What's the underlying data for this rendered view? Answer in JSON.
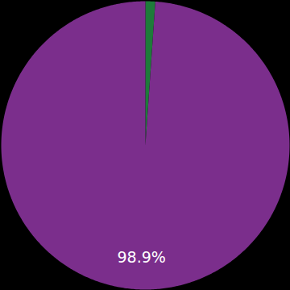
{
  "chart_data": {
    "type": "pie",
    "values": [
      1.1,
      98.9
    ],
    "colors": [
      "#1e7b3a",
      "#7b2e8c"
    ],
    "data_labels": true,
    "value_labels": [
      null,
      "98.9%"
    ]
  }
}
